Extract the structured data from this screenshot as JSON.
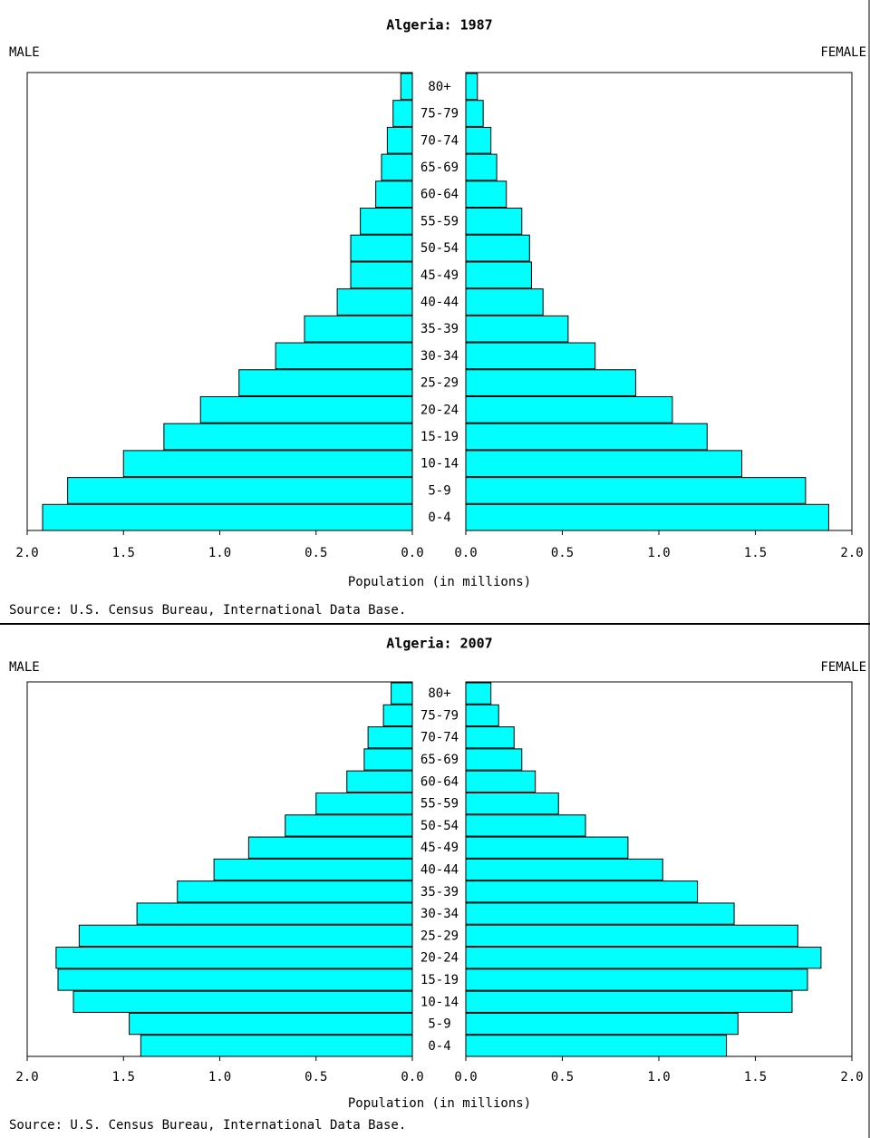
{
  "chart_data": [
    {
      "type": "pyramid",
      "title": "Algeria: 1987",
      "categories": [
        "80+",
        "75-79",
        "70-74",
        "65-69",
        "60-64",
        "55-59",
        "50-54",
        "45-49",
        "40-44",
        "35-39",
        "30-34",
        "25-29",
        "20-24",
        "15-19",
        "10-14",
        "5-9",
        "0-4"
      ],
      "series": [
        {
          "name": "MALE",
          "color": "#00ffff",
          "values": [
            0.06,
            0.1,
            0.13,
            0.16,
            0.19,
            0.27,
            0.32,
            0.32,
            0.39,
            0.56,
            0.71,
            0.9,
            1.1,
            1.29,
            1.5,
            1.79,
            1.92
          ]
        },
        {
          "name": "FEMALE",
          "color": "#00ffff",
          "values": [
            0.06,
            0.09,
            0.13,
            0.16,
            0.21,
            0.29,
            0.33,
            0.34,
            0.4,
            0.53,
            0.67,
            0.88,
            1.07,
            1.25,
            1.43,
            1.76,
            1.88
          ]
        }
      ],
      "xlim": [
        0,
        2
      ],
      "xticks": [
        {
          "value": 0,
          "label": "0.0"
        },
        0.5,
        {
          "value": 1,
          "label": "1.0"
        },
        1.5,
        {
          "value": 2,
          "label": "2.0"
        }
      ],
      "xlabel": "Population (in millions)",
      "source": "Source: U.S. Census Bureau, International Data Base."
    },
    {
      "type": "pyramid",
      "title": "Algeria: 2007",
      "categories": [
        "80+",
        "75-79",
        "70-74",
        "65-69",
        "60-64",
        "55-59",
        "50-54",
        "45-49",
        "40-44",
        "35-39",
        "30-34",
        "25-29",
        "20-24",
        "15-19",
        "10-14",
        "5-9",
        "0-4"
      ],
      "series": [
        {
          "name": "MALE",
          "color": "#00ffff",
          "values": [
            0.11,
            0.15,
            0.23,
            0.25,
            0.34,
            0.5,
            0.66,
            0.85,
            1.03,
            1.22,
            1.43,
            1.73,
            1.85,
            1.84,
            1.76,
            1.47,
            1.41
          ]
        },
        {
          "name": "FEMALE",
          "color": "#00ffff",
          "values": [
            0.13,
            0.17,
            0.25,
            0.29,
            0.36,
            0.48,
            0.62,
            0.84,
            1.02,
            1.2,
            1.39,
            1.72,
            1.84,
            1.77,
            1.69,
            1.41,
            1.35
          ]
        }
      ],
      "xlim": [
        0,
        2
      ],
      "xticks": [
        {
          "value": 0,
          "label": "0.0"
        },
        0.5,
        {
          "value": 1,
          "label": "1.0"
        },
        1.5,
        {
          "value": 2,
          "label": "2.0"
        }
      ],
      "xlabel": "Population (in millions)",
      "source": "Source: U.S. Census Bureau, International Data Base."
    }
  ]
}
